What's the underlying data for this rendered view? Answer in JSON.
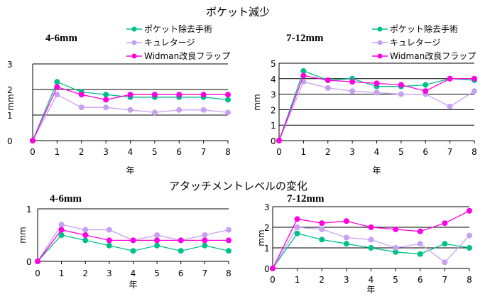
{
  "titles": {
    "pocket": "ポケット減少",
    "attachment": "アタッチメントレベルの変化"
  },
  "legend": [
    {
      "label": "ポケット除去手術",
      "color": "#00c08a"
    },
    {
      "label": "キュレタージ",
      "color": "#c8a0f0"
    },
    {
      "label": "Widman改良フラップ",
      "color": "#ff00e0"
    }
  ],
  "chart_data": [
    {
      "type": "line",
      "section": "ポケット減少",
      "title": "4-6mm",
      "xlabel": "年",
      "ylabel": "mm",
      "x": [
        0,
        1,
        2,
        3,
        4,
        5,
        6,
        7,
        8
      ],
      "ylim": [
        0,
        3
      ],
      "yticks": [
        0,
        1,
        2,
        3
      ],
      "grid": true,
      "series": [
        {
          "name": "ポケット除去手術",
          "values": [
            0,
            2.3,
            1.9,
            1.8,
            1.7,
            1.7,
            1.7,
            1.7,
            1.6
          ]
        },
        {
          "name": "キュレタージ",
          "values": [
            0,
            1.8,
            1.3,
            1.3,
            1.2,
            1.1,
            1.2,
            1.2,
            1.1
          ]
        },
        {
          "name": "Widman改良フラップ",
          "values": [
            0,
            2.1,
            1.8,
            1.6,
            1.8,
            1.8,
            1.8,
            1.8,
            1.8
          ]
        }
      ]
    },
    {
      "type": "line",
      "section": "ポケット減少",
      "title": "7-12mm",
      "xlabel": "年",
      "ylabel": "mm",
      "x": [
        0,
        1,
        2,
        3,
        4,
        5,
        6,
        7,
        8
      ],
      "ylim": [
        0,
        5
      ],
      "yticks": [
        0,
        1,
        2,
        3,
        4,
        5
      ],
      "grid": true,
      "series": [
        {
          "name": "ポケット除去手術",
          "values": [
            0,
            4.5,
            3.9,
            4.0,
            3.5,
            3.5,
            3.6,
            4.0,
            3.9
          ]
        },
        {
          "name": "キュレタージ",
          "values": [
            0,
            3.8,
            3.4,
            3.2,
            3.1,
            3.0,
            3.0,
            2.2,
            3.2
          ]
        },
        {
          "name": "Widman改良フラップ",
          "values": [
            0,
            4.2,
            3.9,
            3.8,
            3.7,
            3.6,
            3.2,
            4.0,
            4.0
          ]
        }
      ]
    },
    {
      "type": "line",
      "section": "アタッチメントレベルの変化",
      "title": "4-6mm",
      "xlabel": "年",
      "ylabel": "mm",
      "x": [
        0,
        1,
        2,
        3,
        4,
        5,
        6,
        7,
        8
      ],
      "ylim": [
        0,
        1
      ],
      "yticks": [
        0,
        1
      ],
      "grid": true,
      "series": [
        {
          "name": "ポケット除去手術",
          "values": [
            0,
            0.5,
            0.4,
            0.3,
            0.2,
            0.3,
            0.2,
            0.3,
            0.2
          ]
        },
        {
          "name": "キュレタージ",
          "values": [
            0,
            0.7,
            0.6,
            0.6,
            0.4,
            0.5,
            0.4,
            0.5,
            0.6
          ]
        },
        {
          "name": "Widman改良フラップ",
          "values": [
            0,
            0.6,
            0.5,
            0.4,
            0.4,
            0.4,
            0.4,
            0.4,
            0.4
          ]
        }
      ]
    },
    {
      "type": "line",
      "section": "アタッチメントレベルの変化",
      "title": "7-12mm",
      "xlabel": "年",
      "ylabel": "mm",
      "x": [
        0,
        1,
        2,
        3,
        4,
        5,
        6,
        7,
        8
      ],
      "ylim": [
        0,
        3
      ],
      "yticks": [
        0,
        1,
        2,
        3
      ],
      "grid": true,
      "series": [
        {
          "name": "ポケット除去手術",
          "values": [
            0,
            1.7,
            1.4,
            1.2,
            1.0,
            0.8,
            0.7,
            1.2,
            1.0
          ]
        },
        {
          "name": "キュレタージ",
          "values": [
            0,
            2.0,
            1.9,
            1.5,
            1.4,
            1.0,
            1.2,
            0.3,
            1.6
          ]
        },
        {
          "name": "Widman改良フラップ",
          "values": [
            0,
            2.4,
            2.2,
            2.3,
            2.0,
            1.9,
            1.8,
            2.2,
            2.8
          ]
        }
      ]
    }
  ]
}
